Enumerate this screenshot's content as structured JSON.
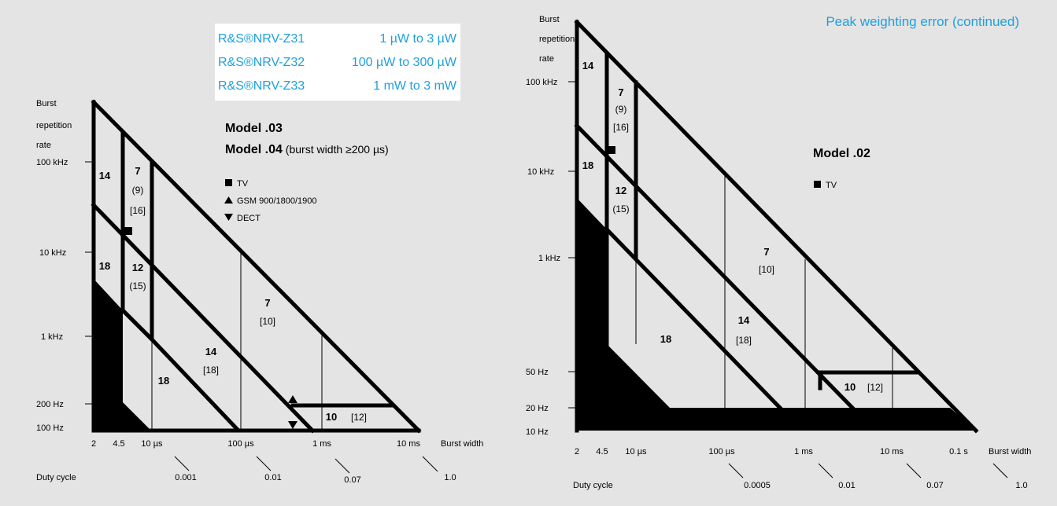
{
  "page_title": "Peak weighting error (continued)",
  "colors": {
    "accent": "#1ea0dc",
    "ink": "#000000",
    "background": "#e4e4e4",
    "legend_box": "#ffffff"
  },
  "sensor_legend": [
    {
      "model": "R&S®NRV-Z31",
      "range": "1 µW to 3 µW"
    },
    {
      "model": "R&S®NRV-Z32",
      "range": "100 µW to 300 µW"
    },
    {
      "model": "R&S®NRV-Z33",
      "range": "1 mW to 3 mW"
    }
  ],
  "left": {
    "title_line1": "Model .03",
    "title_line2_bold": "Model .04",
    "title_line2_rest": " (burst width ≥200 µs)",
    "symbols": [
      {
        "icon": "square-icon",
        "label": "TV"
      },
      {
        "icon": "up-triangle-icon",
        "label": "GSM 900/1800/1900"
      },
      {
        "icon": "down-triangle-icon",
        "label": "DECT"
      }
    ],
    "y_axis_title": [
      "Burst",
      "repetition",
      "rate"
    ],
    "y_ticks": [
      "100 kHz",
      "10 kHz",
      "1 kHz",
      "200 Hz",
      "100 Hz"
    ],
    "x_ticks": [
      "2",
      "4.5",
      "10 µs",
      "100 µs",
      "1 ms",
      "10 ms"
    ],
    "x_axis_title": "Burst width",
    "duty_title": "Duty cycle",
    "duty_ticks": [
      "0.001",
      "0.01",
      "0.07",
      "1.0"
    ],
    "regions": [
      {
        "bold": "14"
      },
      {
        "bold": "7",
        "paren": "(9)",
        "bracket": "[16]"
      },
      {
        "bold": "18"
      },
      {
        "bold": "12",
        "paren": "(15)"
      },
      {
        "bold": "7",
        "bracket": "[10]"
      },
      {
        "bold": "14",
        "bracket": "[18]"
      },
      {
        "bold": "18"
      },
      {
        "bold": "10",
        "bracket": "[12]"
      }
    ]
  },
  "right": {
    "title": "Model .02",
    "symbols": [
      {
        "icon": "square-icon",
        "label": "TV"
      }
    ],
    "y_axis_title": [
      "Burst",
      "repetition",
      "rate"
    ],
    "y_ticks": [
      "100 kHz",
      "10 kHz",
      "1 kHz",
      "50 Hz",
      "20 Hz",
      "10 Hz"
    ],
    "x_ticks": [
      "2",
      "4.5",
      "10 µs",
      "100 µs",
      "1 ms",
      "10 ms",
      "0.1 s"
    ],
    "x_axis_title": "Burst width",
    "duty_title": "Duty cycle",
    "duty_ticks": [
      "0.0005",
      "0.01",
      "0.07",
      "1.0"
    ],
    "regions": [
      {
        "bold": "14"
      },
      {
        "bold": "7",
        "paren": "(9)",
        "bracket": "[16]"
      },
      {
        "bold": "18"
      },
      {
        "bold": "12",
        "paren": "(15)"
      },
      {
        "bold": "7",
        "bracket": "[10]"
      },
      {
        "bold": "18"
      },
      {
        "bold": "14",
        "bracket": "[18]"
      },
      {
        "bold": "10",
        "bracket": "[12]"
      }
    ]
  }
}
